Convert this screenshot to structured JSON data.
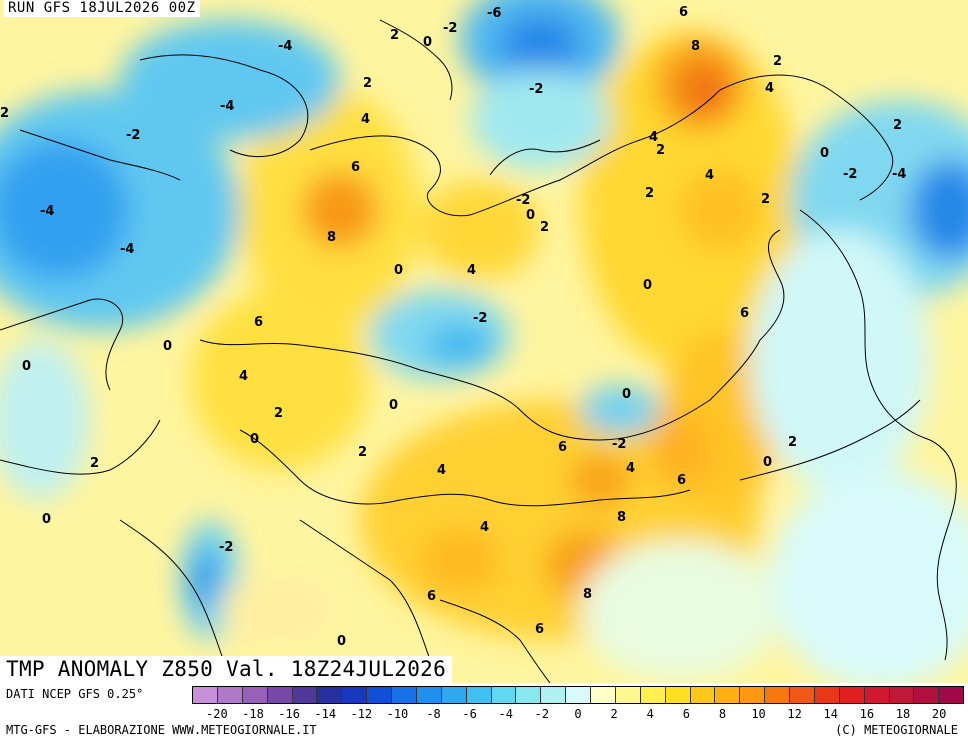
{
  "header": {
    "run": "RUN GFS 18JUL2026 00Z",
    "title": "TMP ANOMALY Z850 Val. 18Z24JUL2026"
  },
  "footer": {
    "source": "DATI NCEP GFS 0.25°",
    "credit_left": "MTG-GFS - ELABORAZIONE WWW.METEOGIORNALE.IT",
    "credit_right": "(C) METEOGIORNALE"
  },
  "colorbar": {
    "colors": [
      "#c890d8",
      "#b078c8",
      "#9860b8",
      "#7848a8",
      "#503898",
      "#2830a0",
      "#1838c0",
      "#1050d8",
      "#1870e8",
      "#2090f0",
      "#30a8f0",
      "#40c0f0",
      "#60d8f0",
      "#88e8f0",
      "#b0f0f0",
      "#d8fafa",
      "#ffffc8",
      "#fff890",
      "#fff050",
      "#ffe020",
      "#ffc818",
      "#ffb010",
      "#ff9810",
      "#f87810",
      "#f05818",
      "#e83818",
      "#e02020",
      "#d01830",
      "#c01838",
      "#b01040",
      "#a00848"
    ],
    "ticks": [
      "-20",
      "-18",
      "-16",
      "-14",
      "-12",
      "-10",
      "-8",
      "-6",
      "-4",
      "-2",
      "0",
      "2",
      "4",
      "6",
      "8",
      "10",
      "12",
      "14",
      "16",
      "18",
      "20"
    ]
  },
  "map_labels": [
    "2",
    "0",
    "-2",
    "-6",
    "6",
    "-4",
    "2",
    "8",
    "2",
    "4",
    "-4",
    "2",
    "4",
    "-2",
    "4",
    "2",
    "2",
    "0",
    "-2",
    "-4",
    "6",
    "-2",
    "-4",
    "0",
    "8",
    "2",
    "2",
    "-4",
    "0",
    "4",
    "0",
    "4",
    "-2",
    "6",
    "0",
    "6",
    "0",
    "4",
    "0",
    "2",
    "0",
    "-2",
    "6",
    "-2",
    "2",
    "2",
    "0",
    "2",
    "4",
    "4",
    "6",
    "0",
    "8",
    "-2",
    "2",
    "4",
    "6",
    "8",
    "0",
    "0",
    "6"
  ]
}
